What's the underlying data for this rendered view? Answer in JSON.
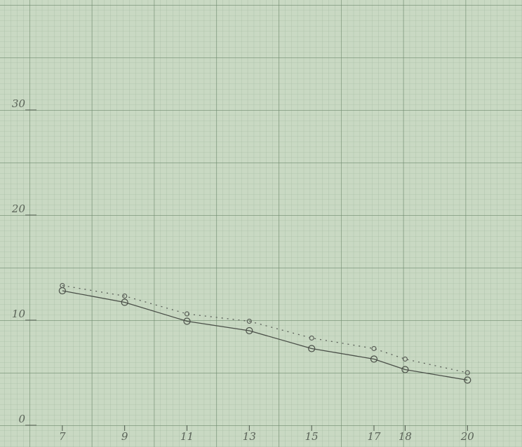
{
  "chart_data": {
    "type": "line",
    "x": [
      7,
      9,
      11,
      13,
      15,
      17,
      18,
      20
    ],
    "series": [
      {
        "color": "#4a4f48",
        "style": "solid",
        "values": [
          12.8,
          11.7,
          9.9,
          9.0,
          7.3,
          6.3,
          5.3,
          4.3
        ]
      },
      {
        "color": "#5a5f58",
        "style": "dotted",
        "values": [
          13.3,
          12.3,
          10.6,
          9.9,
          8.3,
          7.3,
          6.3,
          5.0
        ]
      }
    ],
    "xlim": [
      5,
      21.75
    ],
    "ylim": [
      0,
      40
    ],
    "xticks": [
      7,
      9,
      11,
      13,
      15,
      17,
      18,
      20
    ],
    "yticks": [
      0,
      10,
      20,
      30
    ],
    "grid": true
  }
}
